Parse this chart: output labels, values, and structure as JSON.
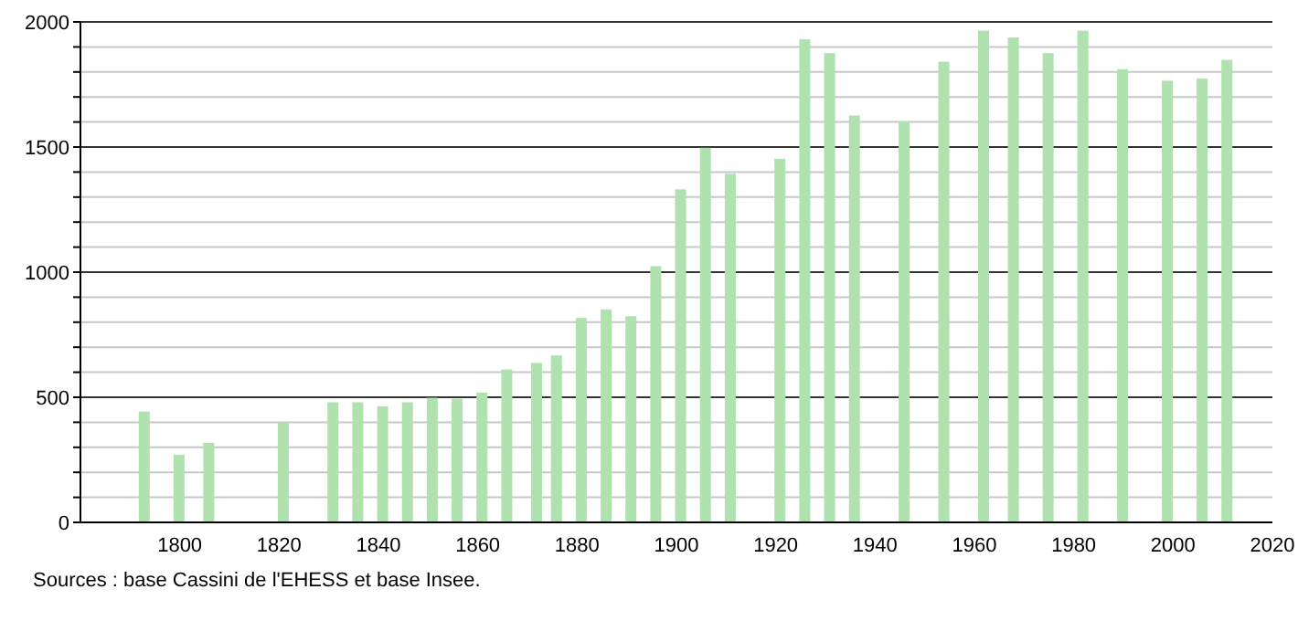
{
  "chart_data": {
    "type": "bar",
    "x": [
      1793,
      1800,
      1806,
      1821,
      1831,
      1836,
      1841,
      1846,
      1851,
      1856,
      1861,
      1866,
      1872,
      1876,
      1881,
      1886,
      1891,
      1896,
      1901,
      1906,
      1911,
      1921,
      1926,
      1931,
      1936,
      1946,
      1954,
      1962,
      1968,
      1975,
      1982,
      1990,
      1999,
      2006,
      2011
    ],
    "values": [
      443,
      270,
      318,
      399,
      480,
      480,
      464,
      480,
      498,
      494,
      519,
      611,
      637,
      667,
      817,
      851,
      824,
      1024,
      1331,
      1497,
      1393,
      1453,
      1931,
      1875,
      1626,
      1603,
      1841,
      1965,
      1938,
      1875,
      1965,
      1811,
      1765,
      1774,
      1848
    ],
    "color": "#b0e2b0",
    "xlim": [
      1780,
      2020
    ],
    "xticks": [
      1800,
      1820,
      1840,
      1860,
      1880,
      1900,
      1920,
      1940,
      1960,
      1980,
      2000,
      2020
    ],
    "ylim": [
      0,
      2000
    ],
    "yticks": [
      0,
      {
        "value": 100,
        "label": null
      },
      {
        "value": 200,
        "label": null
      },
      {
        "value": 300,
        "label": null
      },
      {
        "value": 400,
        "label": null
      },
      500,
      {
        "value": 600,
        "label": null
      },
      {
        "value": 700,
        "label": null
      },
      {
        "value": 800,
        "label": null
      },
      {
        "value": 900,
        "label": null
      },
      1000,
      {
        "value": 1100,
        "label": null
      },
      {
        "value": 1200,
        "label": null
      },
      {
        "value": 1300,
        "label": null
      },
      {
        "value": 1400,
        "label": null
      },
      1500,
      {
        "value": 1600,
        "label": null
      },
      {
        "value": 1700,
        "label": null
      },
      {
        "value": 1800,
        "label": null
      },
      {
        "value": 1900,
        "label": null
      },
      2000
    ],
    "grid": "y",
    "annotations": [
      "Sources : base Cassini de l'EHESS et base Insee."
    ]
  }
}
